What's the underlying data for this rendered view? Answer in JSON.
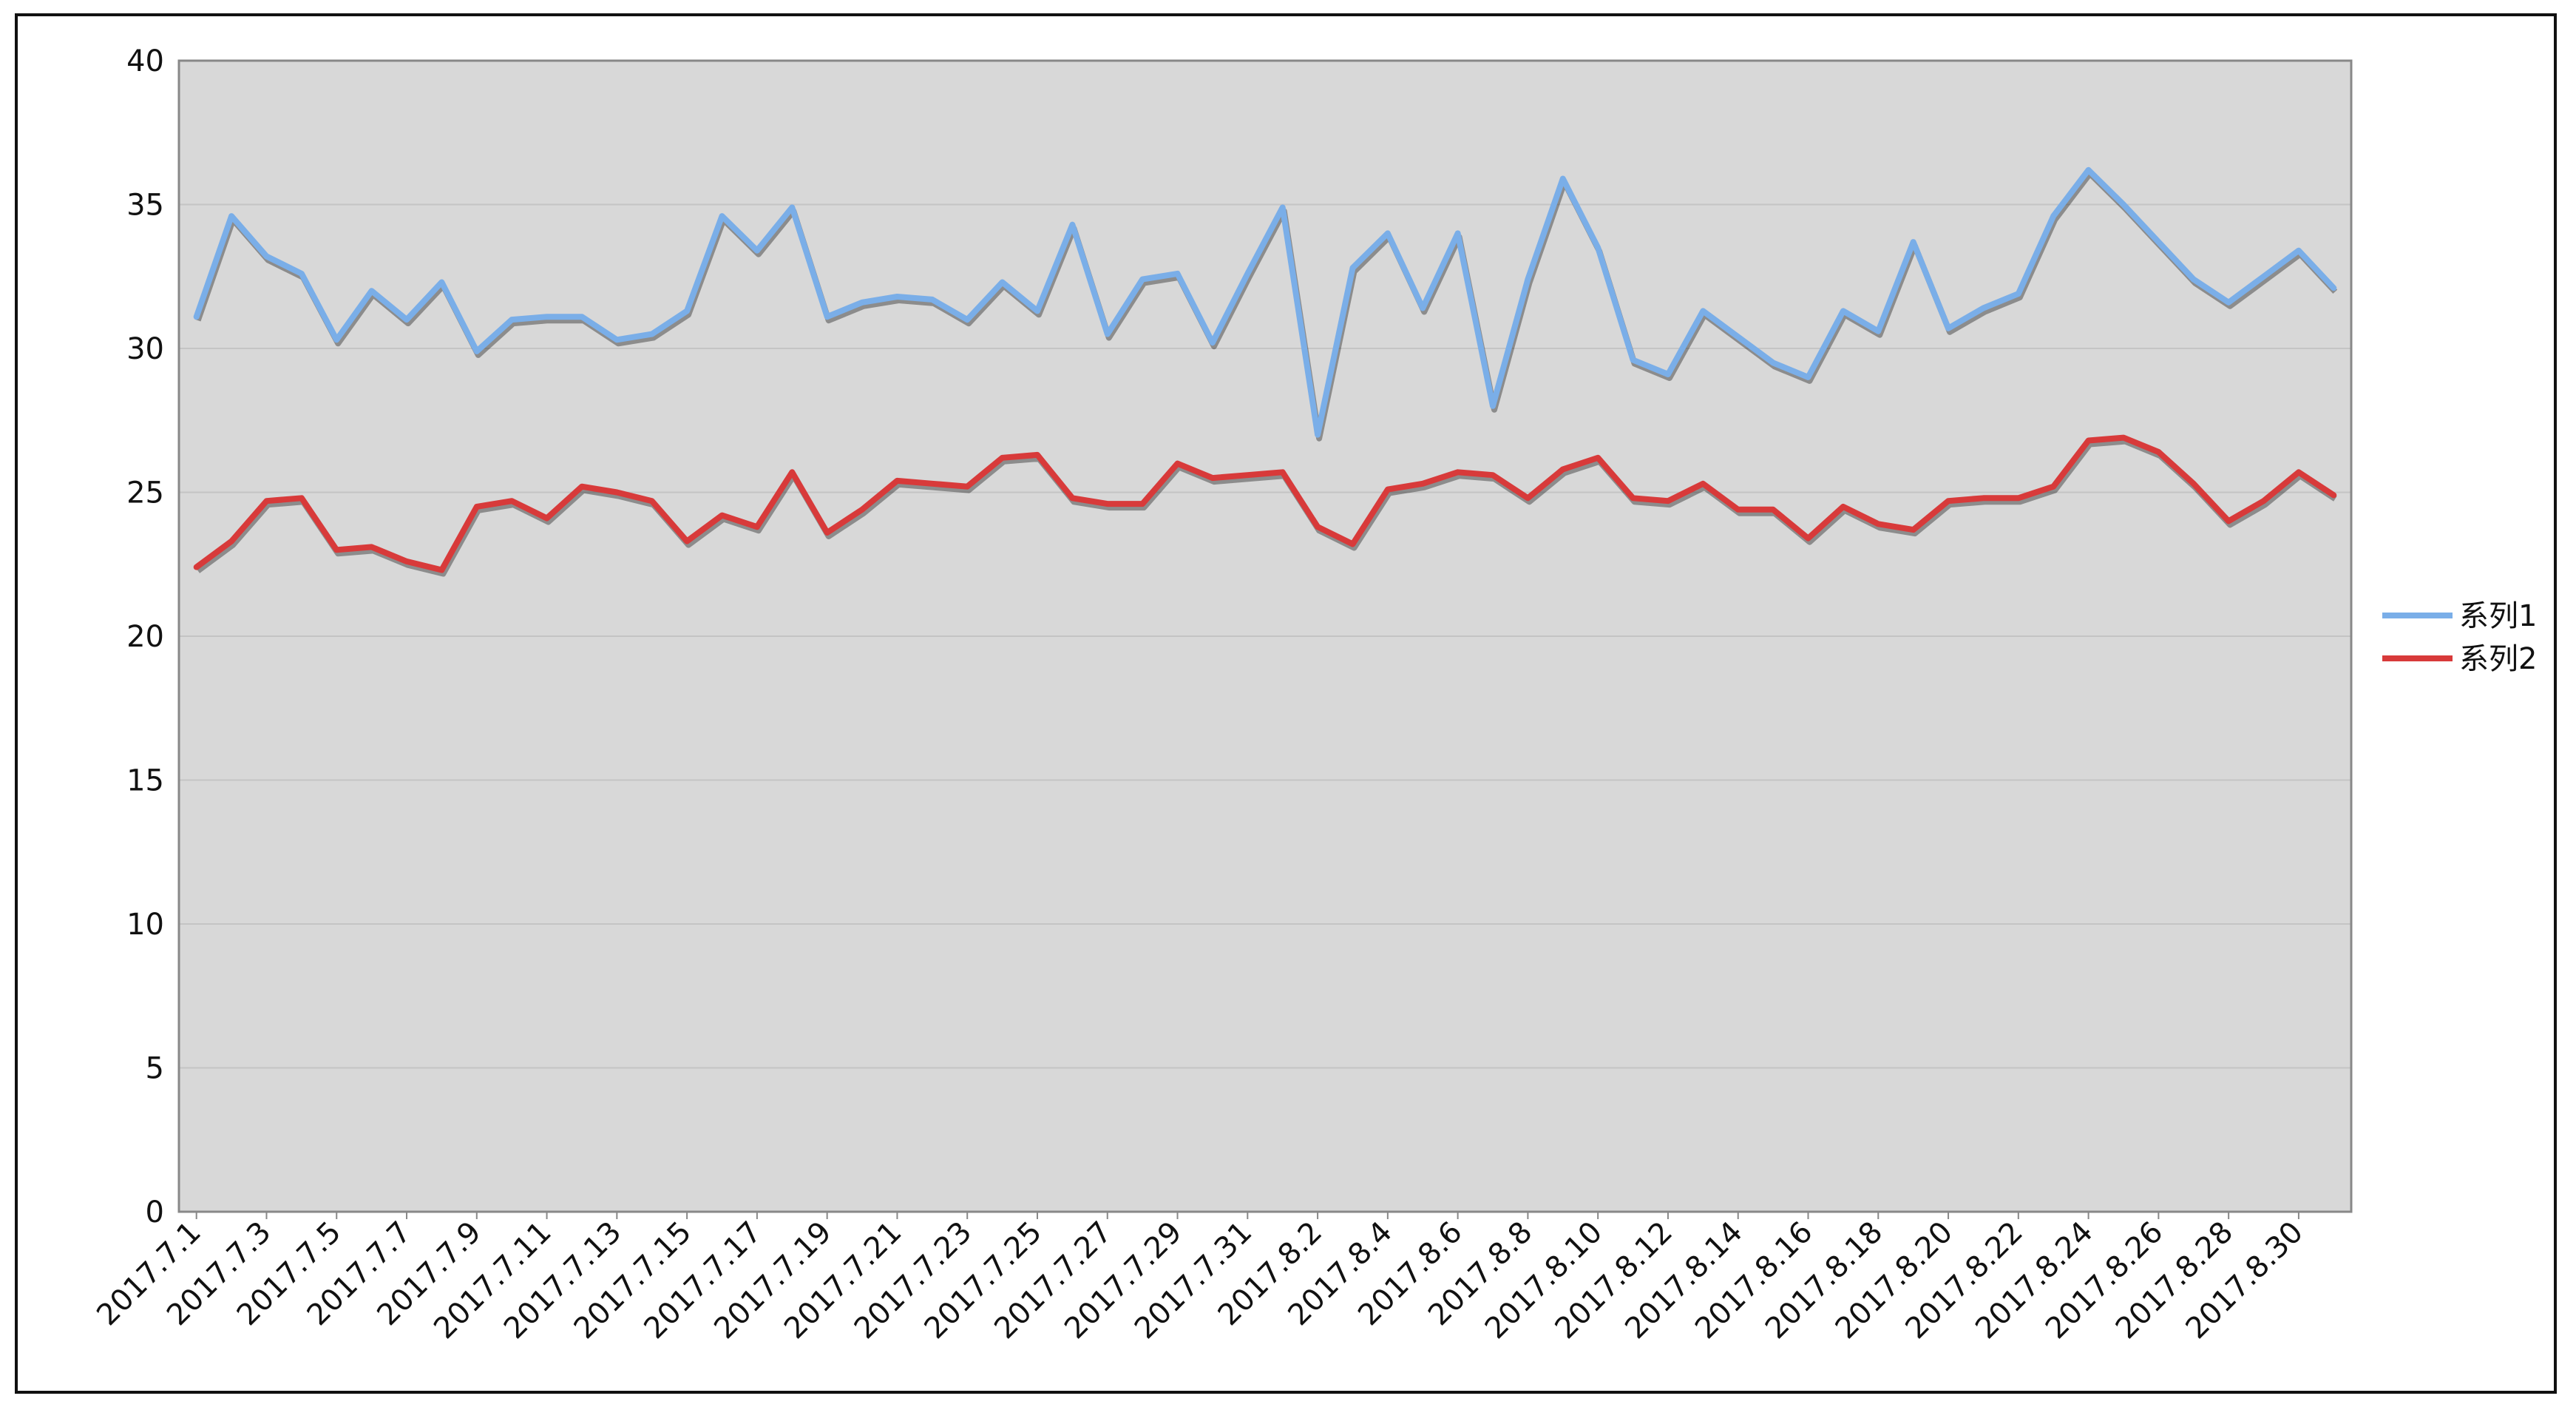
{
  "chart_data": {
    "type": "line",
    "title": "",
    "xlabel": "",
    "ylabel": "",
    "ylim": [
      0,
      40
    ],
    "yticks": [
      0,
      5,
      10,
      15,
      20,
      25,
      30,
      35,
      40
    ],
    "grid": true,
    "plot_background": "#d8d8d8",
    "legend_position": "right",
    "categories": [
      "2017.7.1",
      "2017.7.2",
      "2017.7.3",
      "2017.7.4",
      "2017.7.5",
      "2017.7.6",
      "2017.7.7",
      "2017.7.8",
      "2017.7.9",
      "2017.7.10",
      "2017.7.11",
      "2017.7.12",
      "2017.7.13",
      "2017.7.14",
      "2017.7.15",
      "2017.7.16",
      "2017.7.17",
      "2017.7.18",
      "2017.7.19",
      "2017.7.20",
      "2017.7.21",
      "2017.7.22",
      "2017.7.23",
      "2017.7.24",
      "2017.7.25",
      "2017.7.26",
      "2017.7.27",
      "2017.7.28",
      "2017.7.29",
      "2017.7.30",
      "2017.7.31",
      "2017.8.1",
      "2017.8.2",
      "2017.8.3",
      "2017.8.4",
      "2017.8.5",
      "2017.8.6",
      "2017.8.7",
      "2017.8.8",
      "2017.8.9",
      "2017.8.10",
      "2017.8.11",
      "2017.8.12",
      "2017.8.13",
      "2017.8.14",
      "2017.8.15",
      "2017.8.16",
      "2017.8.17",
      "2017.8.18",
      "2017.8.19",
      "2017.8.20",
      "2017.8.21",
      "2017.8.22",
      "2017.8.23",
      "2017.8.24",
      "2017.8.25",
      "2017.8.26",
      "2017.8.27",
      "2017.8.28",
      "2017.8.29",
      "2017.8.30",
      "2017.8.31"
    ],
    "tick_labels_shown": [
      "2017.7.1",
      "2017.7.3",
      "2017.7.5",
      "2017.7.7",
      "2017.7.9",
      "2017.7.11",
      "2017.7.13",
      "2017.7.15",
      "2017.7.17",
      "2017.7.19",
      "2017.7.21",
      "2017.7.23",
      "2017.7.25",
      "2017.7.27",
      "2017.7.29",
      "2017.7.31",
      "2017.8.2",
      "2017.8.4",
      "2017.8.6",
      "2017.8.8",
      "2017.8.10",
      "2017.8.12",
      "2017.8.14",
      "2017.8.16",
      "2017.8.18",
      "2017.8.20",
      "2017.8.22",
      "2017.8.24",
      "2017.8.26",
      "2017.8.28",
      "2017.8.30"
    ],
    "series": [
      {
        "name": "系列1",
        "color": "#7aaee8",
        "values": [
          31.1,
          34.6,
          33.2,
          32.6,
          30.3,
          32.0,
          31.0,
          32.3,
          29.9,
          31.0,
          31.1,
          31.1,
          30.3,
          30.5,
          31.3,
          34.6,
          33.4,
          34.9,
          31.1,
          31.6,
          31.8,
          31.7,
          31.0,
          32.3,
          31.3,
          34.3,
          30.5,
          32.4,
          32.6,
          30.2,
          32.6,
          34.9,
          27.0,
          32.8,
          34.0,
          31.4,
          34.0,
          28.0,
          32.4,
          35.9,
          33.5,
          29.6,
          29.1,
          31.3,
          30.4,
          29.5,
          29.0,
          31.3,
          30.6,
          33.7,
          30.7,
          31.4,
          31.9,
          34.6,
          36.2,
          35.0,
          33.7,
          32.4,
          31.6,
          32.5,
          33.4,
          32.1
        ]
      },
      {
        "name": "系列2",
        "color": "#d83a3a",
        "values": [
          22.4,
          23.3,
          24.7,
          24.8,
          23.0,
          23.1,
          22.6,
          22.3,
          24.5,
          24.7,
          24.1,
          25.2,
          25.0,
          24.7,
          23.3,
          24.2,
          23.8,
          25.7,
          23.6,
          24.4,
          25.4,
          25.3,
          25.2,
          26.2,
          26.3,
          24.8,
          24.6,
          24.6,
          26.0,
          25.5,
          25.6,
          25.7,
          23.8,
          23.2,
          25.1,
          25.3,
          25.7,
          25.6,
          24.8,
          25.8,
          26.2,
          24.8,
          24.7,
          25.3,
          24.4,
          24.4,
          23.4,
          24.5,
          23.9,
          23.7,
          24.7,
          24.8,
          24.8,
          25.2,
          26.8,
          26.9,
          26.4,
          25.3,
          24.0,
          24.7,
          25.7,
          24.9
        ]
      }
    ]
  }
}
